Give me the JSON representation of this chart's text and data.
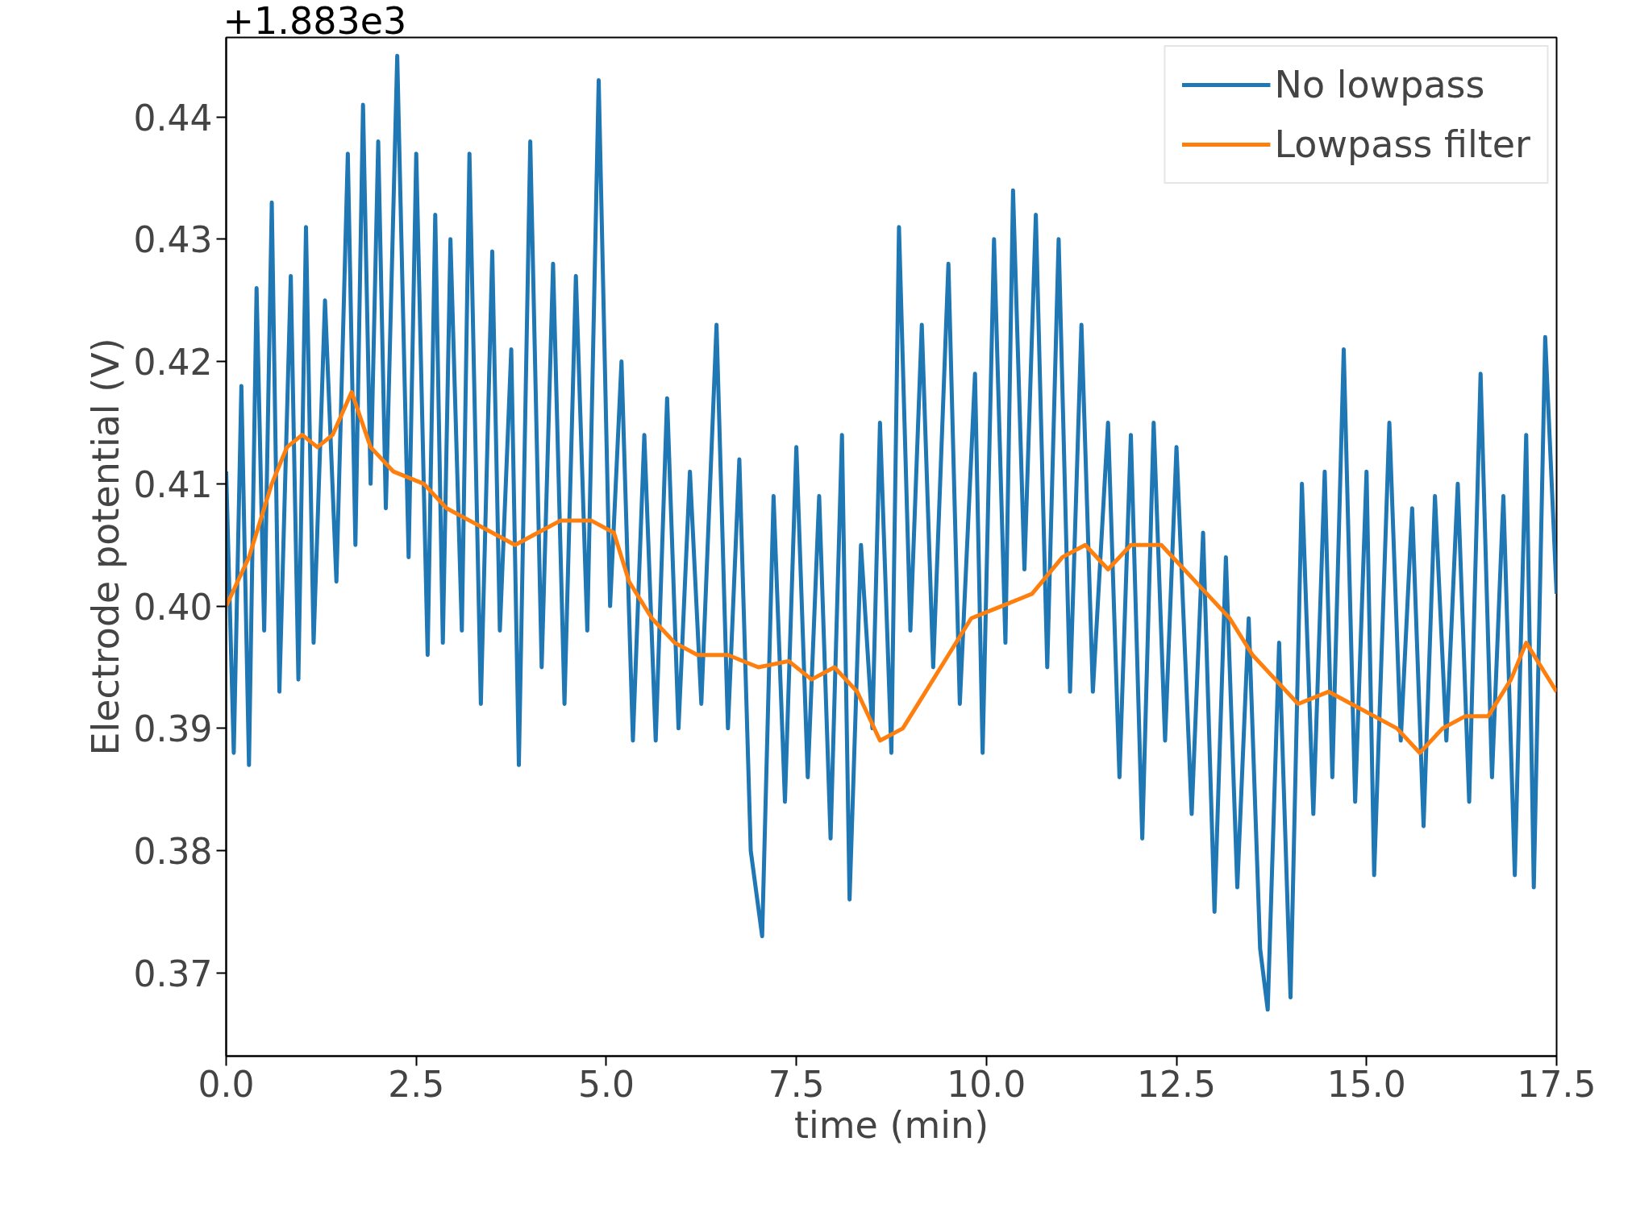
{
  "chart_data": {
    "type": "line",
    "xlabel": "time (min)",
    "ylabel": "Electrode potential (V)",
    "annotations": [
      "+1.883e3"
    ],
    "xlim": [
      0,
      17.5
    ],
    "ylim": [
      0.3632,
      0.4465
    ],
    "xticks": [
      {
        "value": 0,
        "label": "0.0"
      },
      {
        "value": 2.5,
        "label": "2.5"
      },
      {
        "value": 5,
        "label": "5.0"
      },
      {
        "value": 7.5,
        "label": "7.5"
      },
      {
        "value": 10,
        "label": "10.0"
      },
      {
        "value": 12.5,
        "label": "12.5"
      },
      {
        "value": 15,
        "label": "15.0"
      },
      {
        "value": 17.5,
        "label": "17.5"
      }
    ],
    "yticks": [
      0.37,
      0.38,
      0.39,
      {
        "value": 0.4,
        "label": "0.40"
      },
      0.41,
      0.42,
      0.43,
      0.44
    ],
    "grid": false,
    "legend": "top right",
    "line_style": "solid",
    "marker": "none",
    "series": [
      {
        "name": "No lowpass",
        "color": "#1f77b4",
        "x": [
          0.0,
          0.1,
          0.2,
          0.3,
          0.4,
          0.5,
          0.6,
          0.7,
          0.85,
          0.95,
          1.05,
          1.15,
          1.3,
          1.45,
          1.6,
          1.7,
          1.8,
          1.9,
          2.0,
          2.1,
          2.25,
          2.4,
          2.5,
          2.65,
          2.75,
          2.85,
          2.95,
          3.1,
          3.2,
          3.35,
          3.5,
          3.6,
          3.75,
          3.85,
          4.0,
          4.15,
          4.3,
          4.45,
          4.6,
          4.75,
          4.9,
          5.05,
          5.2,
          5.35,
          5.5,
          5.65,
          5.8,
          5.95,
          6.1,
          6.25,
          6.45,
          6.6,
          6.75,
          6.9,
          7.05,
          7.2,
          7.35,
          7.5,
          7.65,
          7.8,
          7.95,
          8.1,
          8.2,
          8.35,
          8.5,
          8.6,
          8.75,
          8.85,
          9.0,
          9.15,
          9.3,
          9.5,
          9.65,
          9.85,
          9.95,
          10.1,
          10.25,
          10.35,
          10.5,
          10.65,
          10.8,
          10.95,
          11.1,
          11.25,
          11.4,
          11.6,
          11.75,
          11.9,
          12.05,
          12.2,
          12.35,
          12.5,
          12.7,
          12.85,
          13.0,
          13.15,
          13.3,
          13.45,
          13.6,
          13.7,
          13.85,
          14.0,
          14.15,
          14.3,
          14.45,
          14.55,
          14.7,
          14.85,
          15.0,
          15.1,
          15.3,
          15.45,
          15.6,
          15.75,
          15.9,
          16.05,
          16.2,
          16.35,
          16.5,
          16.65,
          16.8,
          16.95,
          17.1,
          17.2,
          17.35,
          17.5
        ],
        "values": [
          0.411,
          0.388,
          0.418,
          0.387,
          0.426,
          0.398,
          0.433,
          0.393,
          0.427,
          0.394,
          0.431,
          0.397,
          0.425,
          0.402,
          0.437,
          0.405,
          0.441,
          0.41,
          0.438,
          0.408,
          0.445,
          0.404,
          0.437,
          0.396,
          0.432,
          0.397,
          0.43,
          0.398,
          0.437,
          0.392,
          0.429,
          0.398,
          0.421,
          0.387,
          0.438,
          0.395,
          0.428,
          0.392,
          0.427,
          0.398,
          0.443,
          0.4,
          0.42,
          0.389,
          0.414,
          0.389,
          0.417,
          0.39,
          0.411,
          0.392,
          0.423,
          0.39,
          0.412,
          0.38,
          0.373,
          0.409,
          0.384,
          0.413,
          0.386,
          0.409,
          0.381,
          0.414,
          0.376,
          0.405,
          0.39,
          0.415,
          0.388,
          0.431,
          0.398,
          0.423,
          0.395,
          0.428,
          0.392,
          0.419,
          0.388,
          0.43,
          0.397,
          0.434,
          0.403,
          0.432,
          0.395,
          0.43,
          0.393,
          0.423,
          0.393,
          0.415,
          0.386,
          0.414,
          0.381,
          0.415,
          0.389,
          0.413,
          0.383,
          0.406,
          0.375,
          0.404,
          0.377,
          0.399,
          0.372,
          0.367,
          0.397,
          0.368,
          0.41,
          0.383,
          0.411,
          0.386,
          0.421,
          0.384,
          0.411,
          0.378,
          0.415,
          0.389,
          0.408,
          0.382,
          0.409,
          0.389,
          0.41,
          0.384,
          0.419,
          0.386,
          0.409,
          0.378,
          0.414,
          0.377,
          0.422,
          0.401
        ]
      },
      {
        "name": "Lowpass filter",
        "color": "#ff7f0e",
        "x": [
          0,
          0.3,
          0.6,
          0.8,
          1.0,
          1.2,
          1.4,
          1.65,
          1.9,
          2.2,
          2.6,
          2.9,
          3.2,
          3.5,
          3.8,
          4.1,
          4.4,
          4.8,
          5.1,
          5.3,
          5.6,
          5.9,
          6.2,
          6.6,
          7.0,
          7.4,
          7.7,
          8.0,
          8.3,
          8.6,
          8.9,
          9.2,
          9.5,
          9.8,
          10.2,
          10.6,
          11.0,
          11.3,
          11.6,
          11.9,
          12.3,
          12.6,
          12.9,
          13.2,
          13.5,
          13.8,
          14.1,
          14.5,
          14.8,
          15.1,
          15.4,
          15.7,
          16.0,
          16.3,
          16.6,
          16.9,
          17.1,
          17.3,
          17.5
        ],
        "values": [
          0.4,
          0.404,
          0.41,
          0.413,
          0.414,
          0.413,
          0.414,
          0.4175,
          0.413,
          0.411,
          0.41,
          0.408,
          0.407,
          0.406,
          0.405,
          0.406,
          0.407,
          0.407,
          0.406,
          0.402,
          0.399,
          0.397,
          0.396,
          0.396,
          0.395,
          0.3955,
          0.394,
          0.395,
          0.393,
          0.389,
          0.39,
          0.393,
          0.396,
          0.399,
          0.4,
          0.401,
          0.404,
          0.405,
          0.403,
          0.405,
          0.405,
          0.403,
          0.401,
          0.399,
          0.396,
          0.394,
          0.392,
          0.393,
          0.392,
          0.391,
          0.39,
          0.388,
          0.39,
          0.391,
          0.391,
          0.394,
          0.397,
          0.395,
          0.393
        ]
      }
    ]
  }
}
